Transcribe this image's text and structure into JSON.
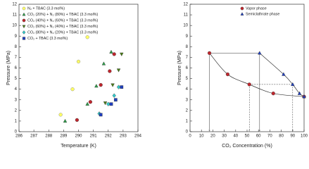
{
  "chart_data": [
    {
      "type": "scatter",
      "x_label": "Temperature (K)",
      "y_label": "Pressure (MPa)",
      "xlim": [
        286,
        294
      ],
      "xticks": [
        286,
        287,
        288,
        289,
        290,
        291,
        292,
        293,
        294
      ],
      "ylim": [
        0,
        12
      ],
      "yticks": [
        0,
        1,
        2,
        3,
        4,
        5,
        6,
        7,
        8,
        9,
        10,
        11,
        12
      ],
      "legend": "upper left",
      "series": [
        {
          "name": "N₂ + TBAC (3.3 mol%)",
          "color": "#ffff66",
          "marker": "circle",
          "x": [
            288.8,
            289.6,
            290.0,
            290.6
          ],
          "values": [
            1.6,
            4.0,
            6.6,
            8.9
          ]
        },
        {
          "name": "CO₂ (20%) + N₂ (80%) + TBAC (3.3 mol%)",
          "color": "#2e9e4a",
          "marker": "triangle-up",
          "x": [
            289.1,
            290.6,
            291.2,
            291.7,
            292.2
          ],
          "values": [
            1.0,
            2.6,
            4.3,
            6.4,
            7.5
          ]
        },
        {
          "name": "CO₂ (40%) + N₂ (60%) + TBAC (3.3 mol%)",
          "color": "#c0262d",
          "marker": "circle",
          "x": [
            289.9,
            290.8,
            291.5,
            292.1,
            292.4
          ],
          "values": [
            1.1,
            2.8,
            4.4,
            5.7,
            7.3
          ]
        },
        {
          "name": "CO₂ (60%) + N₂ (40%) + TBAC (3.3 mol%)",
          "color": "#4a7d18",
          "marker": "triangle-down",
          "x": [
            291.8,
            292.3,
            292.7,
            292.9
          ],
          "values": [
            2.7,
            4.4,
            5.8,
            7.3
          ]
        },
        {
          "name": "CO₂ (80%) + N₂ (20%) + TBAC (3.3 mol%)",
          "color": "#33cccc",
          "marker": "diamond",
          "x": [
            291.4,
            292.0,
            292.4,
            292.7
          ],
          "values": [
            1.7,
            2.6,
            3.4,
            4.2
          ]
        },
        {
          "name": "CO₂ + TBAC (3.3 mol%)",
          "color": "#1f3fbf",
          "marker": "square",
          "x": [
            291.5,
            292.2,
            292.5,
            292.9
          ],
          "values": [
            1.6,
            2.6,
            3.0,
            4.2
          ]
        }
      ]
    },
    {
      "type": "line",
      "x_label": "CO₂ Concentration (%)",
      "y_label": "Pressure (MPa)",
      "xlim": [
        0,
        100
      ],
      "xticks": [
        0,
        10,
        20,
        30,
        40,
        50,
        60,
        70,
        80,
        90,
        100
      ],
      "ylim": [
        0,
        12
      ],
      "yticks": [
        0,
        1,
        2,
        3,
        4,
        5,
        6,
        7,
        8,
        9,
        10,
        11,
        12
      ],
      "legend": "upper right",
      "series": [
        {
          "name": "Vapor phase",
          "color": "#c0262d",
          "marker": "circle",
          "x": [
            17,
            33,
            52,
            73,
            100
          ],
          "values": [
            7.4,
            5.4,
            4.45,
            3.6,
            3.3
          ]
        },
        {
          "name": "Semiclathrate phase",
          "color": "#1f3fbf",
          "marker": "triangle-up",
          "x": [
            61,
            82,
            90,
            96,
            100
          ],
          "values": [
            7.4,
            5.4,
            4.45,
            3.6,
            3.3
          ]
        }
      ]
    }
  ]
}
